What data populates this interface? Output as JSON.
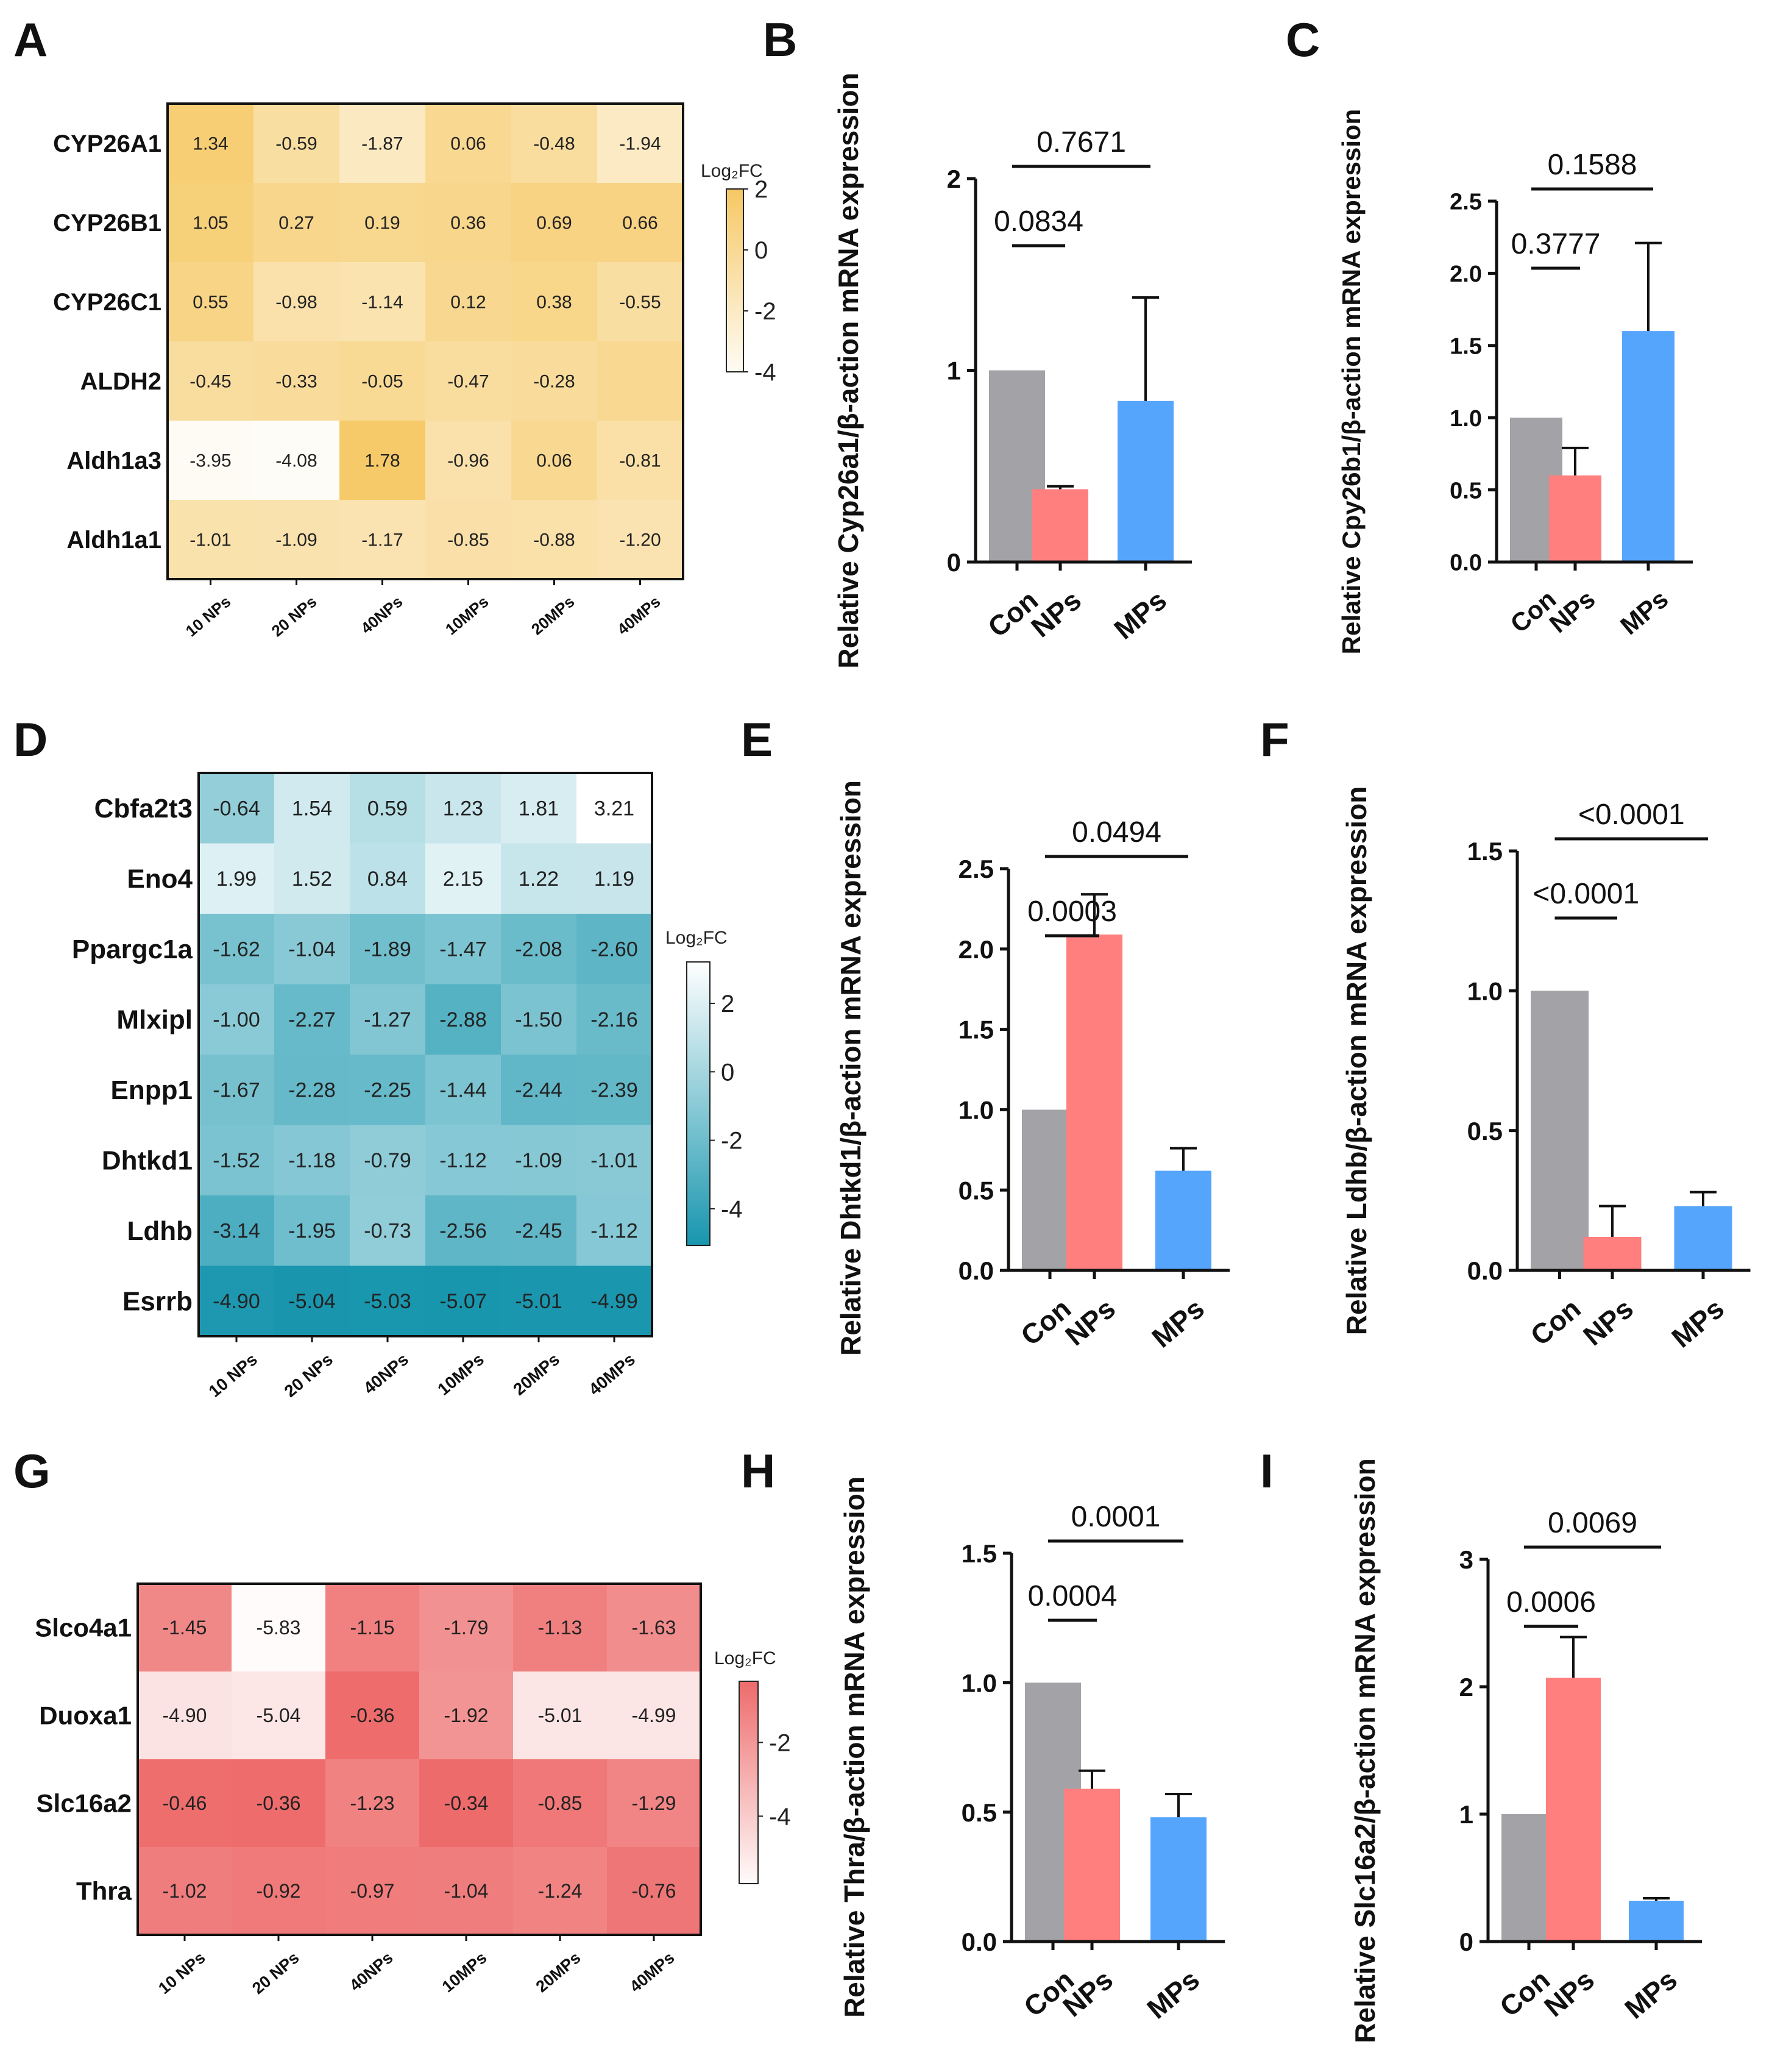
{
  "figure": {
    "panel_labels": [
      "A",
      "B",
      "C",
      "D",
      "E",
      "F",
      "G",
      "H",
      "I"
    ]
  },
  "colors": {
    "con": "#A3A2A7",
    "nps": "#FF7F7F",
    "mps": "#55A5FC",
    "heat_A_low": "#FEFCF7",
    "heat_A_high": "#F6C863",
    "heat_D_low": "#1896AE",
    "heat_D_high": "#FFFFFF",
    "heat_G_low": "#FFFBFB",
    "heat_G_high": "#EE6B6B"
  },
  "chart_data": [
    {
      "id": "A",
      "type": "heatmap",
      "rows": [
        "CYP26A1",
        "CYP26B1",
        "CYP26C1",
        "ALDH2",
        "Aldh1a3",
        "Aldh1a1"
      ],
      "columns": [
        "10 NPs",
        "20 NPs",
        "40NPs",
        "10MPs",
        "20MPs",
        "40MPs"
      ],
      "labels": [
        [
          "1.34",
          "-0.59",
          "-1.87",
          "0.06",
          "-0.48",
          "-1.94"
        ],
        [
          "1.05",
          "0.27",
          "0.19",
          "0.36",
          "0.69",
          "0.66"
        ],
        [
          "0.55",
          "-0.98",
          "-1.14",
          "0.12",
          "0.38",
          "-0.55"
        ],
        [
          "-0.45",
          "-0.33",
          "-0.05",
          "-0.47",
          "-0.28",
          ""
        ],
        [
          "-3.95",
          "-4.08",
          "1.78",
          "-0.96",
          "0.06",
          "-0.81"
        ],
        [
          "-1.01",
          "-1.09",
          "-1.17",
          "-0.85",
          "-0.88",
          "-1.20"
        ]
      ],
      "values": [
        [
          1.34,
          -0.59,
          -1.87,
          0.06,
          -0.48,
          -1.94
        ],
        [
          1.05,
          0.27,
          0.19,
          0.36,
          0.69,
          0.66
        ],
        [
          0.55,
          -0.98,
          -1.14,
          0.12,
          0.38,
          -0.55
        ],
        [
          -0.45,
          -0.33,
          -0.05,
          -0.47,
          -0.28,
          0.1
        ],
        [
          -3.95,
          -4.08,
          1.78,
          -0.96,
          0.06,
          -0.81
        ],
        [
          -1.01,
          -1.09,
          -1.17,
          -0.85,
          -0.88,
          -1.2
        ]
      ],
      "range": [
        -4.08,
        2
      ],
      "legend": {
        "title": "Log₂FC",
        "ticks": [
          2,
          0,
          -2,
          -4
        ],
        "tick_labels": [
          "2",
          "0",
          "-2",
          "-4"
        ],
        "range": [
          -4,
          2
        ]
      }
    },
    {
      "id": "B",
      "type": "bar",
      "categories": [
        "Con",
        "NPs",
        "MPs"
      ],
      "values": [
        1.0,
        0.38,
        0.84
      ],
      "errors": [
        0,
        0.015,
        0.54
      ],
      "ylabel": "Relative Cyp26a1/β-action mRNA expression",
      "ylim": [
        0,
        2
      ],
      "yticks": [
        0,
        1,
        2
      ],
      "ytick_labels": [
        "0",
        "1",
        "2"
      ],
      "annotations": [
        {
          "from": 0,
          "to": 1,
          "label": "0.0834",
          "level": 1
        },
        {
          "from": 0,
          "to": 2,
          "label": "0.7671",
          "level": 2
        }
      ]
    },
    {
      "id": "C",
      "type": "bar",
      "categories": [
        "Con",
        "NPs",
        "MPs"
      ],
      "values": [
        1.0,
        0.6,
        1.6
      ],
      "errors": [
        0,
        0.19,
        0.61
      ],
      "ylabel": "Relative Cpy26b1/β-action mRNA expression",
      "ylim": [
        0,
        2.5
      ],
      "yticks": [
        0,
        0.5,
        1,
        1.5,
        2,
        2.5
      ],
      "ytick_labels": [
        "0.0",
        "0.5",
        "1.0",
        "1.5",
        "2.0",
        "2.5"
      ],
      "annotations": [
        {
          "from": 0,
          "to": 1,
          "label": "0.3777",
          "level": 1
        },
        {
          "from": 0,
          "to": 2,
          "label": "0.1588",
          "level": 2
        }
      ]
    },
    {
      "id": "D",
      "type": "heatmap",
      "rows": [
        "Cbfa2t3",
        "Eno4",
        "Ppargc1a",
        "Mlxipl",
        "Enpp1",
        "Dhtkd1",
        "Ldhb",
        "Esrrb"
      ],
      "columns": [
        "10 NPs",
        "20 NPs",
        "40NPs",
        "10MPs",
        "20MPs",
        "40MPs"
      ],
      "labels": [
        [
          "-0.64",
          "1.54",
          "0.59",
          "1.23",
          "1.81",
          "3.21"
        ],
        [
          "1.99",
          "1.52",
          "0.84",
          "2.15",
          "1.22",
          "1.19"
        ],
        [
          "-1.62",
          "-1.04",
          "-1.89",
          "-1.47",
          "-2.08",
          "-2.60"
        ],
        [
          "-1.00",
          "-2.27",
          "-1.27",
          "-2.88",
          "-1.50",
          "-2.16"
        ],
        [
          "-1.67",
          "-2.28",
          "-2.25",
          "-1.44",
          "-2.44",
          "-2.39"
        ],
        [
          "-1.52",
          "-1.18",
          "-0.79",
          "-1.12",
          "-1.09",
          "-1.01"
        ],
        [
          "-3.14",
          "-1.95",
          "-0.73",
          "-2.56",
          "-2.45",
          "-1.12"
        ],
        [
          "-4.90",
          "-5.04",
          "-5.03",
          "-5.07",
          "-5.01",
          "-4.99"
        ]
      ],
      "values": [
        [
          -0.64,
          1.54,
          0.59,
          1.23,
          1.81,
          3.21
        ],
        [
          1.99,
          1.52,
          0.84,
          2.15,
          1.22,
          1.19
        ],
        [
          -1.62,
          -1.04,
          -1.89,
          -1.47,
          -2.08,
          -2.6
        ],
        [
          -1.0,
          -2.27,
          -1.27,
          -2.88,
          -1.5,
          -2.16
        ],
        [
          -1.67,
          -2.28,
          -2.25,
          -1.44,
          -2.44,
          -2.39
        ],
        [
          -1.52,
          -1.18,
          -0.79,
          -1.12,
          -1.09,
          -1.01
        ],
        [
          -3.14,
          -1.95,
          -0.73,
          -2.56,
          -2.45,
          -1.12
        ],
        [
          -4.9,
          -5.04,
          -5.03,
          -5.07,
          -5.01,
          -4.99
        ]
      ],
      "range": [
        -5.07,
        3.21
      ],
      "legend": {
        "title": "Log₂FC",
        "ticks": [
          2,
          0,
          -2,
          -4
        ],
        "tick_labels": [
          "2",
          "0",
          "-2",
          "-4"
        ],
        "range": [
          -5.07,
          3.21
        ]
      }
    },
    {
      "id": "E",
      "type": "bar",
      "categories": [
        "Con",
        "NPs",
        "MPs"
      ],
      "values": [
        1.0,
        2.09,
        0.62
      ],
      "errors": [
        0,
        0.25,
        0.14
      ],
      "ylabel": "Relative Dhtkd1/β-action mRNA expression",
      "ylim": [
        0,
        2.5
      ],
      "yticks": [
        0,
        0.5,
        1,
        1.5,
        2,
        2.5
      ],
      "ytick_labels": [
        "0.0",
        "0.5",
        "1.0",
        "1.5",
        "2.0",
        "2.5"
      ],
      "annotations": [
        {
          "from": 0,
          "to": 1,
          "label": "0.0003",
          "level": 1
        },
        {
          "from": 0,
          "to": 2,
          "label": "0.0494",
          "level": 2
        }
      ]
    },
    {
      "id": "F",
      "type": "bar",
      "categories": [
        "Con",
        "NPs",
        "MPs"
      ],
      "values": [
        1.0,
        0.12,
        0.23
      ],
      "errors": [
        0,
        0.11,
        0.05
      ],
      "ylabel": "Relative Ldhb/β-action mRNA expression",
      "ylim": [
        0,
        1.5
      ],
      "yticks": [
        0,
        0.5,
        1,
        1.5
      ],
      "ytick_labels": [
        "0.0",
        "0.5",
        "1.0",
        "1.5"
      ],
      "annotations": [
        {
          "from": 0,
          "to": 1,
          "label": "<0.0001",
          "level": 1
        },
        {
          "from": 0,
          "to": 2,
          "label": "<0.0001",
          "level": 2
        }
      ]
    },
    {
      "id": "G",
      "type": "heatmap",
      "rows": [
        "Slco4a1",
        "Duoxa1",
        "Slc16a2",
        "Thra"
      ],
      "columns": [
        "10 NPs",
        "20 NPs",
        "40NPs",
        "10MPs",
        "20MPs",
        "40MPs"
      ],
      "labels": [
        [
          "-1.45",
          "-5.83",
          "-1.15",
          "-1.79",
          "-1.13",
          "-1.63"
        ],
        [
          "-4.90",
          "-5.04",
          "-0.36",
          "-1.92",
          "-5.01",
          "-4.99"
        ],
        [
          "-0.46",
          "-0.36",
          "-1.23",
          "-0.34",
          "-0.85",
          "-1.29"
        ],
        [
          "-1.02",
          "-0.92",
          "-0.97",
          "-1.04",
          "-1.24",
          "-0.76"
        ]
      ],
      "values": [
        [
          -1.45,
          -5.83,
          -1.15,
          -1.79,
          -1.13,
          -1.63
        ],
        [
          -4.9,
          -5.04,
          -0.36,
          -1.92,
          -5.01,
          -4.99
        ],
        [
          -0.46,
          -0.36,
          -1.23,
          -0.34,
          -0.85,
          -1.29
        ],
        [
          -1.02,
          -0.92,
          -0.97,
          -1.04,
          -1.24,
          -0.76
        ]
      ],
      "range": [
        -5.83,
        -0.34
      ],
      "legend": {
        "title": "Log₂FC",
        "ticks": [
          -2,
          -4
        ],
        "tick_labels": [
          "-2",
          "-4"
        ],
        "range": [
          -5.83,
          -0.34
        ]
      }
    },
    {
      "id": "H",
      "type": "bar",
      "categories": [
        "Con",
        "NPs",
        "MPs"
      ],
      "values": [
        1.0,
        0.59,
        0.48
      ],
      "errors": [
        0,
        0.07,
        0.09
      ],
      "ylabel": "Relative Thra/β-action mRNA expression",
      "ylim": [
        0,
        1.5
      ],
      "yticks": [
        0,
        0.5,
        1,
        1.5
      ],
      "ytick_labels": [
        "0.0",
        "0.5",
        "1.0",
        "1.5"
      ],
      "annotations": [
        {
          "from": 0,
          "to": 1,
          "label": "0.0004",
          "level": 1
        },
        {
          "from": 0,
          "to": 2,
          "label": "0.0001",
          "level": 2
        }
      ]
    },
    {
      "id": "I",
      "type": "bar",
      "categories": [
        "Con",
        "NPs",
        "MPs"
      ],
      "values": [
        1.0,
        2.07,
        0.32
      ],
      "errors": [
        0,
        0.32,
        0.02
      ],
      "ylabel": "Relative Slc16a2/β-action mRNA expression",
      "ylim": [
        0,
        3
      ],
      "yticks": [
        0,
        1,
        2,
        3
      ],
      "ytick_labels": [
        "0",
        "1",
        "2",
        "3"
      ],
      "annotations": [
        {
          "from": 0,
          "to": 1,
          "label": "0.0006",
          "level": 1
        },
        {
          "from": 0,
          "to": 2,
          "label": "0.0069",
          "level": 2
        }
      ]
    }
  ]
}
